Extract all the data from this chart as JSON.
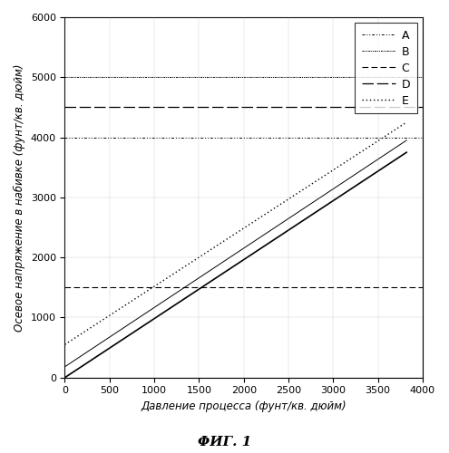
{
  "xlabel": "Давление процесса (фунт/кв. дюйм)",
  "ylabel": "Осевое напряжение в набивке (фунт/кв. дюйм)",
  "caption": "ΦИГ. 1",
  "xlim": [
    0,
    4000
  ],
  "ylim": [
    0,
    6000
  ],
  "xticks": [
    0,
    500,
    1000,
    1500,
    2000,
    2500,
    3000,
    3500,
    4000
  ],
  "yticks": [
    0,
    1000,
    2000,
    3000,
    4000,
    5000,
    6000
  ],
  "figsize": [
    4.95,
    5.0
  ],
  "dpi": 100,
  "lines": [
    {
      "label": "A",
      "xdata": [
        0,
        4000
      ],
      "ydata": [
        4000,
        4000
      ],
      "linewidth": 0.7,
      "dashes": [
        3,
        2,
        1,
        2,
        1,
        2
      ]
    },
    {
      "label": "B",
      "xdata": [
        0,
        4000
      ],
      "ydata": [
        5000,
        5000
      ],
      "linewidth": 0.7,
      "dashes": [
        2,
        1,
        1,
        1,
        1,
        1
      ]
    },
    {
      "label": "C",
      "xdata": [
        0,
        4000
      ],
      "ydata": [
        1500,
        1500
      ],
      "linewidth": 0.8,
      "dashes": [
        6,
        3
      ]
    },
    {
      "label": "D",
      "xdata": [
        0,
        4000
      ],
      "ydata": [
        4500,
        4500
      ],
      "linewidth": 0.9,
      "dashes": [
        10,
        3
      ]
    },
    {
      "label": "E",
      "xdata": [
        0,
        3820
      ],
      "ydata": [
        550,
        4250
      ],
      "linewidth": 1.0,
      "dashes": [
        1,
        2
      ]
    }
  ],
  "diag_solid1": {
    "x": [
      0,
      3820
    ],
    "y": [
      0,
      3750
    ],
    "lw": 1.2
  },
  "diag_solid2": {
    "x": [
      0,
      3820
    ],
    "y": [
      180,
      3950
    ],
    "lw": 0.7
  }
}
